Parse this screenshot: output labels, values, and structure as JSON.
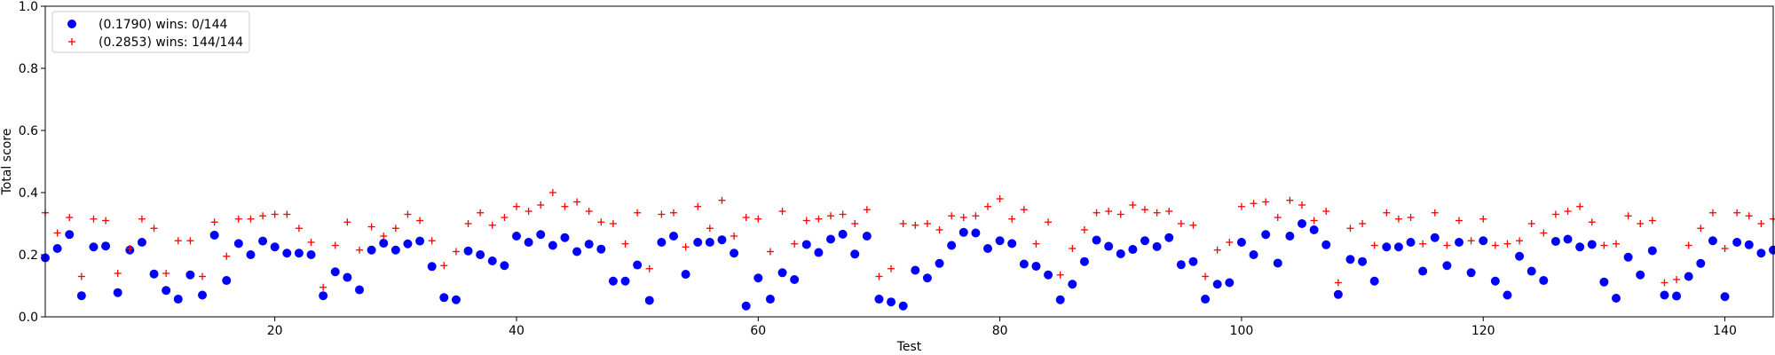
{
  "chart_data": {
    "type": "scatter",
    "xlabel": "Test",
    "ylabel": "Total score",
    "xlim": [
      1,
      144
    ],
    "ylim": [
      0,
      1.0
    ],
    "xticks": [
      20,
      40,
      60,
      80,
      100,
      120,
      140
    ],
    "xtick_labels": [
      "20",
      "40",
      "60",
      "80",
      "100",
      "120",
      "140"
    ],
    "yticks": [
      0.0,
      0.2,
      0.4,
      0.6,
      0.8,
      1.0
    ],
    "ytick_labels": [
      "0.0",
      "0.2",
      "0.4",
      "0.6",
      "0.8",
      "1.0"
    ],
    "grid": false,
    "legend_position": "top-left",
    "series": [
      {
        "name": "(0.1790) wins: 0/144",
        "marker": "circle",
        "color": "#0000ff",
        "x": [
          1,
          2,
          3,
          4,
          5,
          6,
          7,
          8,
          9,
          10,
          11,
          12,
          13,
          14,
          15,
          16,
          17,
          18,
          19,
          20,
          21,
          22,
          23,
          24,
          25,
          26,
          27,
          28,
          29,
          30,
          31,
          32,
          33,
          34,
          35,
          36,
          37,
          38,
          39,
          40,
          41,
          42,
          43,
          44,
          45,
          46,
          47,
          48,
          49,
          50,
          51,
          52,
          53,
          54,
          55,
          56,
          57,
          58,
          59,
          60,
          61,
          62,
          63,
          64,
          65,
          66,
          67,
          68,
          69,
          70,
          71,
          72,
          73,
          74,
          75,
          76,
          77,
          78,
          79,
          80,
          81,
          82,
          83,
          84,
          85,
          86,
          87,
          88,
          89,
          90,
          91,
          92,
          93,
          94,
          95,
          96,
          97,
          98,
          99,
          100,
          101,
          102,
          103,
          104,
          105,
          106,
          107,
          108,
          109,
          110,
          111,
          112,
          113,
          114,
          115,
          116,
          117,
          118,
          119,
          120,
          121,
          122,
          123,
          124,
          125,
          126,
          127,
          128,
          129,
          130,
          131,
          132,
          133,
          134,
          135,
          136,
          137,
          138,
          139,
          140,
          141,
          142,
          143,
          144
        ],
        "y": [
          0.19,
          0.22,
          0.265,
          0.068,
          0.225,
          0.228,
          0.078,
          0.215,
          0.24,
          0.138,
          0.085,
          0.057,
          0.135,
          0.07,
          0.263,
          0.117,
          0.236,
          0.2,
          0.244,
          0.225,
          0.205,
          0.205,
          0.2,
          0.068,
          0.145,
          0.127,
          0.087,
          0.215,
          0.237,
          0.215,
          0.235,
          0.244,
          0.162,
          0.062,
          0.055,
          0.212,
          0.2,
          0.18,
          0.165,
          0.26,
          0.24,
          0.265,
          0.23,
          0.255,
          0.21,
          0.234,
          0.218,
          0.115,
          0.115,
          0.167,
          0.053,
          0.24,
          0.26,
          0.137,
          0.24,
          0.24,
          0.248,
          0.205,
          0.035,
          0.125,
          0.057,
          0.142,
          0.12,
          0.233,
          0.207,
          0.25,
          0.266,
          0.202,
          0.26,
          0.057,
          0.048,
          0.035,
          0.15,
          0.125,
          0.172,
          0.23,
          0.272,
          0.27,
          0.22,
          0.245,
          0.236,
          0.17,
          0.163,
          0.135,
          0.055,
          0.105,
          0.178,
          0.247,
          0.227,
          0.203,
          0.217,
          0.245,
          0.226,
          0.255,
          0.168,
          0.178,
          0.057,
          0.105,
          0.11,
          0.24,
          0.2,
          0.265,
          0.173,
          0.26,
          0.3,
          0.28,
          0.232,
          0.072,
          0.185,
          0.178,
          0.115,
          0.225,
          0.225,
          0.24,
          0.147,
          0.255,
          0.165,
          0.24,
          0.142,
          0.245,
          0.115,
          0.07,
          0.195,
          0.147,
          0.117,
          0.243,
          0.25,
          0.225,
          0.233,
          0.112,
          0.06,
          0.192,
          0.135,
          0.213,
          0.07,
          0.067,
          0.13,
          0.172,
          0.245,
          0.065,
          0.24,
          0.232,
          0.205,
          0.215
        ]
      },
      {
        "name": "(0.2853) wins: 144/144",
        "marker": "plus",
        "color": "#ff0000",
        "x": [
          1,
          2,
          3,
          4,
          5,
          6,
          7,
          8,
          9,
          10,
          11,
          12,
          13,
          14,
          15,
          16,
          17,
          18,
          19,
          20,
          21,
          22,
          23,
          24,
          25,
          26,
          27,
          28,
          29,
          30,
          31,
          32,
          33,
          34,
          35,
          36,
          37,
          38,
          39,
          40,
          41,
          42,
          43,
          44,
          45,
          46,
          47,
          48,
          49,
          50,
          51,
          52,
          53,
          54,
          55,
          56,
          57,
          58,
          59,
          60,
          61,
          62,
          63,
          64,
          65,
          66,
          67,
          68,
          69,
          70,
          71,
          72,
          73,
          74,
          75,
          76,
          77,
          78,
          79,
          80,
          81,
          82,
          83,
          84,
          85,
          86,
          87,
          88,
          89,
          90,
          91,
          92,
          93,
          94,
          95,
          96,
          97,
          98,
          99,
          100,
          101,
          102,
          103,
          104,
          105,
          106,
          107,
          108,
          109,
          110,
          111,
          112,
          113,
          114,
          115,
          116,
          117,
          118,
          119,
          120,
          121,
          122,
          123,
          124,
          125,
          126,
          127,
          128,
          129,
          130,
          131,
          132,
          133,
          134,
          135,
          136,
          137,
          138,
          139,
          140,
          141,
          142,
          143,
          144
        ],
        "y": [
          0.335,
          0.27,
          0.32,
          0.13,
          0.315,
          0.31,
          0.14,
          0.22,
          0.315,
          0.285,
          0.14,
          0.245,
          0.245,
          0.13,
          0.305,
          0.195,
          0.315,
          0.315,
          0.325,
          0.33,
          0.33,
          0.285,
          0.24,
          0.095,
          0.23,
          0.305,
          0.215,
          0.29,
          0.26,
          0.285,
          0.33,
          0.31,
          0.245,
          0.165,
          0.21,
          0.3,
          0.335,
          0.295,
          0.32,
          0.355,
          0.34,
          0.36,
          0.4,
          0.355,
          0.37,
          0.34,
          0.305,
          0.3,
          0.235,
          0.335,
          0.155,
          0.33,
          0.335,
          0.225,
          0.355,
          0.285,
          0.375,
          0.26,
          0.32,
          0.315,
          0.21,
          0.34,
          0.235,
          0.31,
          0.315,
          0.325,
          0.33,
          0.3,
          0.345,
          0.13,
          0.155,
          0.3,
          0.295,
          0.3,
          0.28,
          0.325,
          0.32,
          0.325,
          0.355,
          0.38,
          0.315,
          0.345,
          0.235,
          0.305,
          0.135,
          0.22,
          0.28,
          0.335,
          0.34,
          0.33,
          0.36,
          0.345,
          0.335,
          0.34,
          0.3,
          0.295,
          0.13,
          0.215,
          0.24,
          0.355,
          0.365,
          0.37,
          0.32,
          0.375,
          0.36,
          0.31,
          0.34,
          0.11,
          0.285,
          0.3,
          0.23,
          0.335,
          0.315,
          0.32,
          0.235,
          0.335,
          0.23,
          0.31,
          0.245,
          0.315,
          0.23,
          0.235,
          0.245,
          0.3,
          0.27,
          0.33,
          0.34,
          0.355,
          0.305,
          0.23,
          0.235,
          0.325,
          0.3,
          0.31,
          0.11,
          0.12,
          0.23,
          0.285,
          0.335,
          0.22,
          0.335,
          0.325,
          0.3,
          0.315
        ]
      }
    ]
  }
}
